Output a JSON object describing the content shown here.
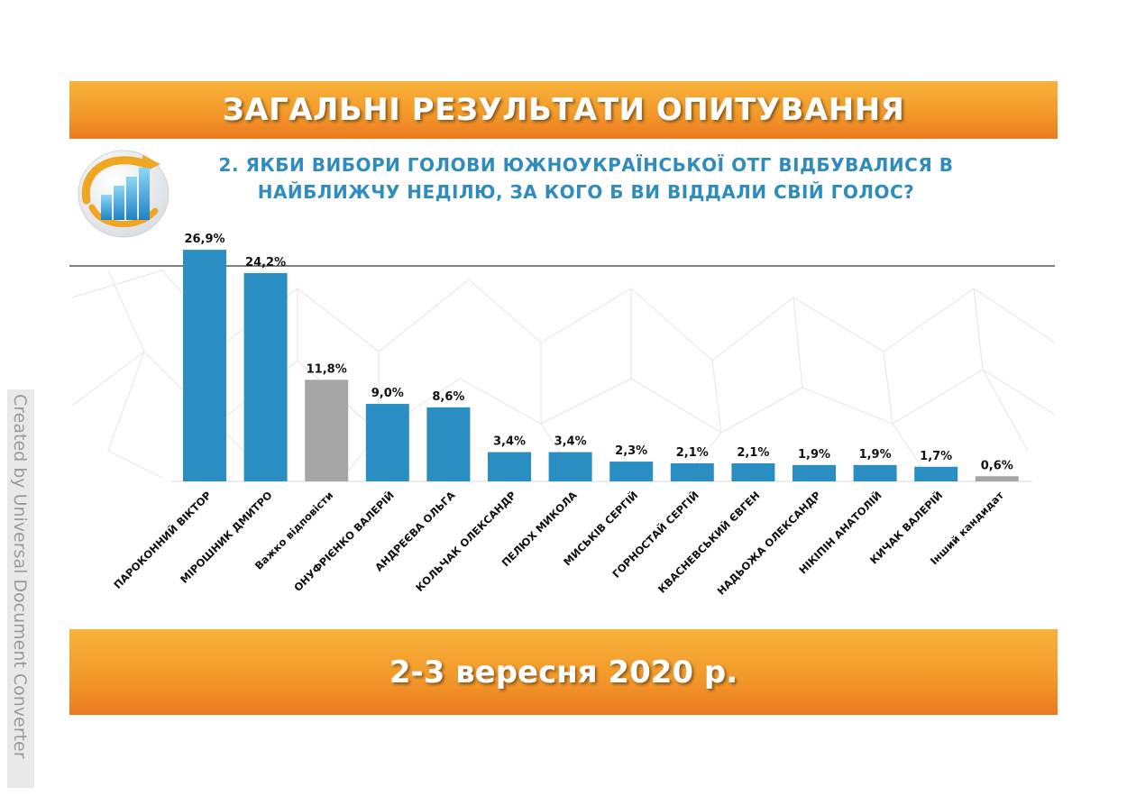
{
  "header": {
    "title": "ЗАГАЛЬНІ РЕЗУЛЬТАТИ ОПИТУВАННЯ"
  },
  "subtitle": {
    "line1": "2. ЯКБИ ВИБОРИ ГОЛОВИ ЮЖНОУКРАЇНСЬКОЇ ОТГ ВІДБУВАЛИСЯ В",
    "line2": "НАЙБЛИЖЧУ НЕДІЛЮ, ЗА КОГО Б ВИ ВІДДАЛИ СВІЙ ГОЛОС?"
  },
  "footer": {
    "date": "2-3 вересня 2020 р."
  },
  "watermark": {
    "text": "Created by Universal Document Converter"
  },
  "colors": {
    "orange": "#f39a2a",
    "blue_bar": "#2b8ec2",
    "gray_bar": "#a6a6a6",
    "title_blue": "#2e8cbf"
  },
  "chart_data": {
    "type": "bar",
    "title": "",
    "xlabel": "",
    "ylabel": "",
    "categories": [
      "ПАРОКОННИЙ ВІКТОР",
      "МІРОШНИК ДМИТРО",
      "Важко відповісти",
      "ОНУФРІЄНКО ВАЛЕРІЙ",
      "АНДРЕЄВА ОЛЬГА",
      "КОЛЬЧАК ОЛЕКСАНДР",
      "ПЕЛЮХ МИКОЛА",
      "МИСЬКІВ СЕРГІЙ",
      "ГОРНОСТАЙ СЕРГІЙ",
      "КВАСНЕВСЬКИЙ ЄВГЕН",
      "НАДЬОЖА ОЛЕКСАНДР",
      "НІКІПІН АНАТОЛІЙ",
      "КИЧАК ВАЛЕРІЙ",
      "Інший кандидат"
    ],
    "values": [
      26.9,
      24.2,
      11.8,
      9.0,
      8.6,
      3.4,
      3.4,
      2.3,
      2.1,
      2.1,
      1.9,
      1.9,
      1.7,
      0.6
    ],
    "value_labels": [
      "26,9%",
      "24,2%",
      "11,8%",
      "9,0%",
      "8,6%",
      "3,4%",
      "3,4%",
      "2,3%",
      "2,1%",
      "2,1%",
      "1,9%",
      "1,9%",
      "1,7%",
      "0,6%"
    ],
    "bar_colors": [
      "blue",
      "blue",
      "gray",
      "blue",
      "blue",
      "blue",
      "blue",
      "blue",
      "blue",
      "blue",
      "blue",
      "blue",
      "blue",
      "gray"
    ],
    "ylim": [
      0,
      27
    ],
    "grid": false,
    "legend": "none"
  }
}
